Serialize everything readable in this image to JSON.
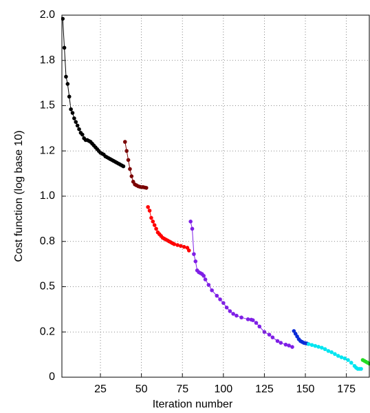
{
  "chart_data": {
    "type": "line",
    "x_label": "Iteration number",
    "y_label": "Cost function (log base 10)",
    "xlim": [
      1.5,
      189
    ],
    "ylim": [
      0,
      2
    ],
    "xticks": [
      25,
      50,
      75,
      100,
      125,
      150,
      175
    ],
    "yticks": [
      0,
      {
        "value": 0.25,
        "label": "0.2"
      },
      0.5,
      {
        "value": 0.75,
        "label": "0.8"
      },
      {
        "value": 1,
        "label": "1.0"
      },
      {
        "value": 1.25,
        "label": "1.2"
      },
      1.5,
      {
        "value": 1.75,
        "label": "1.8"
      },
      {
        "value": 2,
        "label": "2.0"
      }
    ],
    "grid": true,
    "series": [
      {
        "color": "#000000",
        "x": [
          2,
          3,
          4,
          5,
          6,
          7,
          8,
          9,
          10,
          11,
          12,
          13,
          14,
          15,
          16,
          17,
          18,
          19,
          20,
          21,
          22,
          23,
          24,
          25,
          26,
          27,
          28,
          29,
          30,
          31,
          32,
          33,
          34,
          35,
          36,
          37,
          38,
          39
        ],
        "values": [
          1.98,
          1.82,
          1.66,
          1.62,
          1.55,
          1.48,
          1.46,
          1.43,
          1.41,
          1.39,
          1.37,
          1.35,
          1.34,
          1.32,
          1.31,
          1.31,
          1.305,
          1.3,
          1.29,
          1.28,
          1.27,
          1.26,
          1.25,
          1.24,
          1.235,
          1.23,
          1.22,
          1.215,
          1.21,
          1.205,
          1.2,
          1.195,
          1.19,
          1.185,
          1.18,
          1.175,
          1.17,
          1.165
        ]
      },
      {
        "color": "#7a0000",
        "x": [
          40,
          41,
          42,
          43,
          44,
          45,
          46,
          47,
          48,
          49,
          50,
          51,
          52,
          53
        ],
        "values": [
          1.3,
          1.25,
          1.2,
          1.15,
          1.11,
          1.08,
          1.065,
          1.06,
          1.055,
          1.052,
          1.05,
          1.05,
          1.048,
          1.046
        ]
      },
      {
        "color": "#ff0000",
        "x": [
          54,
          55,
          56,
          57,
          58,
          59,
          60,
          61,
          62,
          63,
          64,
          65,
          66,
          67,
          68,
          69,
          70,
          72,
          74,
          76,
          78,
          79
        ],
        "values": [
          0.94,
          0.92,
          0.88,
          0.86,
          0.84,
          0.82,
          0.8,
          0.79,
          0.78,
          0.77,
          0.765,
          0.76,
          0.755,
          0.75,
          0.745,
          0.74,
          0.735,
          0.73,
          0.725,
          0.72,
          0.715,
          0.7
        ]
      },
      {
        "color": "#7f1fe6",
        "x": [
          80,
          81,
          82,
          83,
          84,
          85,
          86,
          87,
          88,
          89,
          91,
          93,
          96,
          98,
          100,
          102,
          104,
          106,
          108,
          111,
          115,
          117,
          118,
          120,
          122,
          125,
          128,
          130,
          133,
          135,
          138,
          140,
          142
        ],
        "values": [
          0.86,
          0.82,
          0.68,
          0.64,
          0.59,
          0.58,
          0.575,
          0.57,
          0.56,
          0.54,
          0.51,
          0.48,
          0.45,
          0.43,
          0.41,
          0.385,
          0.365,
          0.35,
          0.34,
          0.33,
          0.32,
          0.318,
          0.315,
          0.3,
          0.28,
          0.25,
          0.235,
          0.22,
          0.2,
          0.19,
          0.18,
          0.175,
          0.167
        ]
      },
      {
        "color": "#0a2bd8",
        "x": [
          143,
          144,
          145,
          146,
          147,
          148,
          149,
          150,
          151
        ],
        "values": [
          0.255,
          0.24,
          0.225,
          0.21,
          0.2,
          0.195,
          0.19,
          0.188,
          0.186
        ]
      },
      {
        "color": "#00e5f0",
        "x": [
          152,
          154,
          156,
          158,
          160,
          162,
          164,
          166,
          168,
          170,
          172,
          174,
          176,
          178,
          180,
          181,
          182,
          183,
          184
        ],
        "values": [
          0.183,
          0.178,
          0.173,
          0.168,
          0.163,
          0.155,
          0.145,
          0.138,
          0.128,
          0.118,
          0.11,
          0.104,
          0.095,
          0.08,
          0.062,
          0.052,
          0.046,
          0.046,
          0.046
        ]
      },
      {
        "color": "#22dd22",
        "x": [
          185,
          186,
          187,
          188,
          189
        ],
        "values": [
          0.095,
          0.09,
          0.085,
          0.08,
          0.075
        ]
      }
    ]
  }
}
